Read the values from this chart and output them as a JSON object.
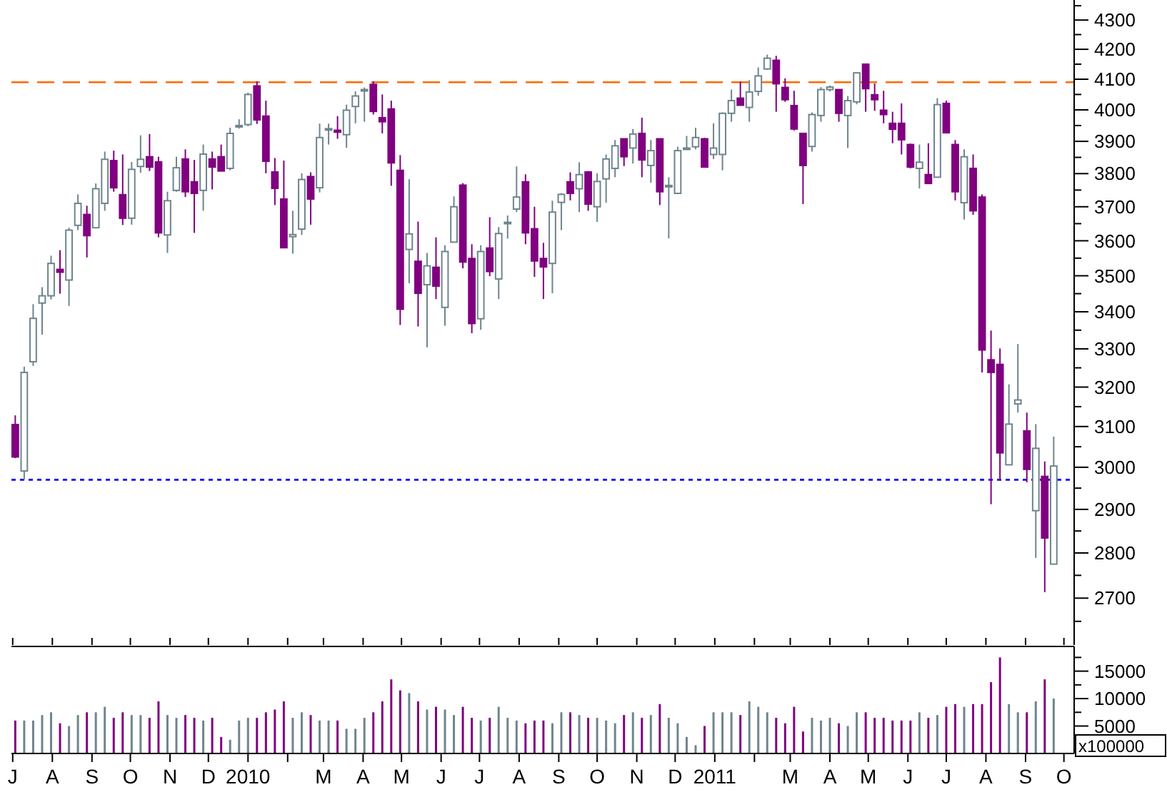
{
  "chart_data": [
    {
      "type": "candlestick",
      "log": true,
      "tick_labels": "y",
      "x": [
        "2009-07-03",
        "2009-07-10",
        "2009-07-17",
        "2009-07-24",
        "2009-07-31",
        "2009-08-07",
        "2009-08-14",
        "2009-08-21",
        "2009-08-28",
        "2009-09-04",
        "2009-09-11",
        "2009-09-18",
        "2009-09-25",
        "2009-10-02",
        "2009-10-09",
        "2009-10-16",
        "2009-10-23",
        "2009-10-30",
        "2009-11-06",
        "2009-11-13",
        "2009-11-20",
        "2009-11-27",
        "2009-12-04",
        "2009-12-11",
        "2009-12-18",
        "2009-12-25",
        "2010-01-01",
        "2010-01-08",
        "2010-01-15",
        "2010-01-22",
        "2010-01-29",
        "2010-02-05",
        "2010-02-12",
        "2010-02-19",
        "2010-02-26",
        "2010-03-05",
        "2010-03-12",
        "2010-03-19",
        "2010-03-26",
        "2010-04-02",
        "2010-04-09",
        "2010-04-16",
        "2010-04-23",
        "2010-04-30",
        "2010-05-07",
        "2010-05-14",
        "2010-05-21",
        "2010-05-28",
        "2010-06-04",
        "2010-06-11",
        "2010-06-18",
        "2010-06-25",
        "2010-07-02",
        "2010-07-09",
        "2010-07-16",
        "2010-07-23",
        "2010-07-30",
        "2010-08-06",
        "2010-08-13",
        "2010-08-20",
        "2010-08-27",
        "2010-09-03",
        "2010-09-10",
        "2010-09-17",
        "2010-09-24",
        "2010-10-01",
        "2010-10-08",
        "2010-10-15",
        "2010-10-22",
        "2010-10-29",
        "2010-11-05",
        "2010-11-12",
        "2010-11-19",
        "2010-11-26",
        "2010-12-03",
        "2010-12-10",
        "2010-12-17",
        "2010-12-24",
        "2010-12-31",
        "2011-01-07",
        "2011-01-14",
        "2011-01-21",
        "2011-01-28",
        "2011-02-04",
        "2011-02-11",
        "2011-02-18",
        "2011-02-25",
        "2011-03-04",
        "2011-03-11",
        "2011-03-18",
        "2011-03-25",
        "2011-04-01",
        "2011-04-08",
        "2011-04-15",
        "2011-04-22",
        "2011-04-29",
        "2011-05-06",
        "2011-05-13",
        "2011-05-20",
        "2011-05-27",
        "2011-06-03",
        "2011-06-10",
        "2011-06-17",
        "2011-06-24",
        "2011-07-01",
        "2011-07-08",
        "2011-07-15",
        "2011-07-22",
        "2011-07-29",
        "2011-08-05",
        "2011-08-12",
        "2011-08-19",
        "2011-08-26",
        "2011-09-02",
        "2011-09-09",
        "2011-09-16",
        "2011-09-23"
      ],
      "ohlc": [
        [
          3105,
          3128,
          3022,
          3025
        ],
        [
          2991,
          3253,
          2970,
          3238
        ],
        [
          3266,
          3421,
          3255,
          3382
        ],
        [
          3424,
          3468,
          3338,
          3444
        ],
        [
          3444,
          3557,
          3434,
          3535
        ],
        [
          3518,
          3573,
          3450,
          3510
        ],
        [
          3488,
          3638,
          3416,
          3631
        ],
        [
          3645,
          3737,
          3631,
          3710
        ],
        [
          3677,
          3703,
          3552,
          3615
        ],
        [
          3638,
          3770,
          3638,
          3754
        ],
        [
          3710,
          3868,
          3688,
          3844
        ],
        [
          3840,
          3871,
          3745,
          3757
        ],
        [
          3736,
          3859,
          3646,
          3666
        ],
        [
          3666,
          3836,
          3647,
          3813
        ],
        [
          3822,
          3919,
          3803,
          3844
        ],
        [
          3852,
          3923,
          3808,
          3820
        ],
        [
          3836,
          3852,
          3610,
          3623
        ],
        [
          3617,
          3745,
          3565,
          3718
        ],
        [
          3749,
          3852,
          3745,
          3818
        ],
        [
          3845,
          3875,
          3729,
          3745
        ],
        [
          3775,
          3842,
          3623,
          3740
        ],
        [
          3749,
          3890,
          3688,
          3860
        ],
        [
          3845,
          3868,
          3752,
          3820
        ],
        [
          3852,
          3890,
          3808,
          3808
        ],
        [
          3816,
          3943,
          3810,
          3925
        ],
        [
          3948,
          3970,
          3940,
          3950
        ],
        [
          3953,
          4056,
          3948,
          4050
        ],
        [
          4078,
          4093,
          3955,
          3968
        ],
        [
          3980,
          4030,
          3801,
          3838
        ],
        [
          3805,
          3848,
          3705,
          3755
        ],
        [
          3723,
          3840,
          3580,
          3580
        ],
        [
          3612,
          3688,
          3563,
          3618
        ],
        [
          3634,
          3801,
          3617,
          3782
        ],
        [
          3791,
          3804,
          3647,
          3723
        ],
        [
          3757,
          3956,
          3743,
          3912
        ],
        [
          3938,
          3956,
          3890,
          3940
        ],
        [
          3935,
          3980,
          3908,
          3929
        ],
        [
          3921,
          4017,
          3880,
          3999
        ],
        [
          4011,
          4060,
          3957,
          4045
        ],
        [
          4062,
          4073,
          3962,
          4066
        ],
        [
          4083,
          4093,
          3985,
          3995
        ],
        [
          3975,
          4050,
          3925,
          3962
        ],
        [
          4003,
          4030,
          3763,
          3833
        ],
        [
          3810,
          3857,
          3364,
          3407
        ],
        [
          3575,
          3783,
          3479,
          3620
        ],
        [
          3541,
          3656,
          3360,
          3451
        ],
        [
          3475,
          3565,
          3304,
          3528
        ],
        [
          3524,
          3610,
          3435,
          3471
        ],
        [
          3412,
          3587,
          3362,
          3569
        ],
        [
          3596,
          3731,
          3596,
          3700
        ],
        [
          3765,
          3771,
          3521,
          3539
        ],
        [
          3549,
          3590,
          3342,
          3368
        ],
        [
          3381,
          3587,
          3351,
          3569
        ],
        [
          3579,
          3669,
          3499,
          3512
        ],
        [
          3491,
          3640,
          3435,
          3621
        ],
        [
          3650,
          3674,
          3606,
          3654
        ],
        [
          3693,
          3822,
          3684,
          3729
        ],
        [
          3775,
          3798,
          3590,
          3623
        ],
        [
          3635,
          3700,
          3497,
          3542
        ],
        [
          3549,
          3594,
          3435,
          3525
        ],
        [
          3535,
          3718,
          3451,
          3684
        ],
        [
          3713,
          3741,
          3631,
          3737
        ],
        [
          3775,
          3804,
          3719,
          3740
        ],
        [
          3754,
          3835,
          3684,
          3797
        ],
        [
          3805,
          3808,
          3688,
          3708
        ],
        [
          3700,
          3801,
          3655,
          3776
        ],
        [
          3784,
          3859,
          3712,
          3845
        ],
        [
          3816,
          3904,
          3789,
          3886
        ],
        [
          3908,
          3908,
          3823,
          3852
        ],
        [
          3879,
          3939,
          3831,
          3923
        ],
        [
          3925,
          3975,
          3789,
          3842
        ],
        [
          3825,
          3904,
          3772,
          3871
        ],
        [
          3908,
          3908,
          3705,
          3745
        ],
        [
          3760,
          3789,
          3607,
          3764
        ],
        [
          3740,
          3883,
          3740,
          3871
        ],
        [
          3876,
          3917,
          3875,
          3879
        ],
        [
          3883,
          3943,
          3875,
          3912
        ],
        [
          3908,
          3911,
          3820,
          3820
        ],
        [
          3859,
          3957,
          3845,
          3879
        ],
        [
          3859,
          3992,
          3810,
          3989
        ],
        [
          3989,
          4066,
          3962,
          4030
        ],
        [
          4038,
          4092,
          4015,
          4015
        ],
        [
          4008,
          4097,
          3962,
          4058
        ],
        [
          4060,
          4139,
          4046,
          4111
        ],
        [
          4134,
          4182,
          4131,
          4170
        ],
        [
          4163,
          4178,
          3994,
          4085
        ],
        [
          4073,
          4103,
          4026,
          4033
        ],
        [
          4014,
          4062,
          3934,
          3939
        ],
        [
          3925,
          3925,
          3708,
          3825
        ],
        [
          3884,
          3992,
          3868,
          3985
        ],
        [
          3982,
          4074,
          3962,
          4066
        ],
        [
          4066,
          4079,
          4060,
          4074
        ],
        [
          4066,
          4066,
          3962,
          3989
        ],
        [
          3982,
          4045,
          3879,
          4030
        ],
        [
          4026,
          4121,
          4018,
          4121
        ],
        [
          4150,
          4150,
          3994,
          4069
        ],
        [
          4049,
          4086,
          3997,
          4033
        ],
        [
          3999,
          4062,
          3957,
          3985
        ],
        [
          3957,
          3994,
          3894,
          3938
        ],
        [
          3957,
          4021,
          3859,
          3905
        ],
        [
          3890,
          3893,
          3816,
          3820
        ],
        [
          3816,
          3890,
          3755,
          3835
        ],
        [
          3797,
          3894,
          3770,
          3770
        ],
        [
          3789,
          4038,
          3789,
          4017
        ],
        [
          4021,
          4030,
          3927,
          3927
        ],
        [
          3890,
          3904,
          3719,
          3745
        ],
        [
          3712,
          3875,
          3662,
          3852
        ],
        [
          3816,
          3859,
          3676,
          3688
        ],
        [
          3729,
          3737,
          3238,
          3297
        ],
        [
          3271,
          3349,
          2912,
          3238
        ],
        [
          3259,
          3301,
          2968,
          3035
        ],
        [
          3006,
          3207,
          3006,
          3106
        ],
        [
          3157,
          3313,
          3135,
          3167
        ],
        [
          3089,
          3135,
          2964,
          2995
        ],
        [
          2897,
          3106,
          2789,
          3046
        ],
        [
          2978,
          3014,
          2713,
          2834
        ],
        [
          2775,
          3075,
          2775,
          3003
        ]
      ],
      "colors": [
        "#800080",
        "#6e858e",
        "#6e858e",
        "#6e858e",
        "#6e858e",
        "#800080",
        "#6e858e",
        "#6e858e",
        "#800080",
        "#6e858e",
        "#6e858e",
        "#800080",
        "#800080",
        "#6e858e",
        "#6e858e",
        "#800080",
        "#800080",
        "#6e858e",
        "#6e858e",
        "#800080",
        "#800080",
        "#6e858e",
        "#800080",
        "#800080",
        "#6e858e",
        "#6e858e",
        "#6e858e",
        "#800080",
        "#800080",
        "#800080",
        "#800080",
        "#6e858e",
        "#6e858e",
        "#800080",
        "#6e858e",
        "#6e858e",
        "#800080",
        "#6e858e",
        "#6e858e",
        "#6e858e",
        "#800080",
        "#800080",
        "#800080",
        "#800080",
        "#6e858e",
        "#800080",
        "#6e858e",
        "#800080",
        "#6e858e",
        "#6e858e",
        "#800080",
        "#800080",
        "#6e858e",
        "#800080",
        "#6e858e",
        "#6e858e",
        "#6e858e",
        "#800080",
        "#800080",
        "#800080",
        "#6e858e",
        "#6e858e",
        "#800080",
        "#6e858e",
        "#800080",
        "#6e858e",
        "#6e858e",
        "#6e858e",
        "#800080",
        "#6e858e",
        "#800080",
        "#6e858e",
        "#800080",
        "#6e858e",
        "#6e858e",
        "#6e858e",
        "#6e858e",
        "#800080",
        "#6e858e",
        "#6e858e",
        "#6e858e",
        "#800080",
        "#6e858e",
        "#6e858e",
        "#6e858e",
        "#800080",
        "#800080",
        "#800080",
        "#800080",
        "#6e858e",
        "#6e858e",
        "#6e858e",
        "#800080",
        "#6e858e",
        "#6e858e",
        "#800080",
        "#800080",
        "#800080",
        "#800080",
        "#800080",
        "#800080",
        "#6e858e",
        "#800080",
        "#6e858e",
        "#800080",
        "#800080",
        "#6e858e",
        "#800080",
        "#800080",
        "#800080",
        "#800080",
        "#6e858e",
        "#6e858e",
        "#800080",
        "#6e858e",
        "#800080",
        "#6e858e"
      ],
      "xlim": [
        "2009-06-30",
        "2011-10-09"
      ],
      "xticks": [
        {
          "value": "2009-07-01",
          "label": null
        },
        {
          "value": "2009-08-01",
          "label": null
        },
        {
          "value": "2009-09-01",
          "label": null
        },
        {
          "value": "2009-10-01",
          "label": null
        },
        {
          "value": "2009-11-01",
          "label": null
        },
        {
          "value": "2009-12-01",
          "label": null
        },
        {
          "value": "2010-01-01",
          "label": null
        },
        {
          "value": "2010-02-01",
          "label": null
        },
        {
          "value": "2010-03-01",
          "label": null
        },
        {
          "value": "2010-04-01",
          "label": null
        },
        {
          "value": "2010-05-01",
          "label": null
        },
        {
          "value": "2010-06-01",
          "label": null
        },
        {
          "value": "2010-07-01",
          "label": null
        },
        {
          "value": "2010-08-01",
          "label": null
        },
        {
          "value": "2010-09-01",
          "label": null
        },
        {
          "value": "2010-10-01",
          "label": null
        },
        {
          "value": "2010-11-01",
          "label": null
        },
        {
          "value": "2010-12-01",
          "label": null
        },
        {
          "value": "2011-01-01",
          "label": null
        },
        {
          "value": "2011-02-01",
          "label": null
        },
        {
          "value": "2011-03-01",
          "label": null
        },
        {
          "value": "2011-04-01",
          "label": null
        },
        {
          "value": "2011-05-01",
          "label": null
        },
        {
          "value": "2011-06-01",
          "label": null
        },
        {
          "value": "2011-07-01",
          "label": null
        },
        {
          "value": "2011-08-01",
          "label": null
        },
        {
          "value": "2011-09-01",
          "label": null
        },
        {
          "value": "2011-10-01",
          "label": null
        }
      ],
      "ylim": [
        2600,
        4370
      ],
      "yticks": [
        {
          "value": 2650,
          "label": null
        },
        2700,
        {
          "value": 2750,
          "label": null
        },
        2800,
        {
          "value": 2850,
          "label": null
        },
        2900,
        {
          "value": 2950,
          "label": null
        },
        3000,
        {
          "value": 3050,
          "label": null
        },
        3100,
        {
          "value": 3150,
          "label": null
        },
        3200,
        {
          "value": 3250,
          "label": null
        },
        3300,
        {
          "value": 3350,
          "label": null
        },
        3400,
        {
          "value": 3450,
          "label": null
        },
        3500,
        {
          "value": 3550,
          "label": null
        },
        3600,
        {
          "value": 3650,
          "label": null
        },
        3700,
        {
          "value": 3750,
          "label": null
        },
        3800,
        {
          "value": 3850,
          "label": null
        },
        3900,
        {
          "value": 3950,
          "label": null
        },
        4000,
        {
          "value": 4050,
          "label": null
        },
        4100,
        {
          "value": 4150,
          "label": null
        },
        4200,
        {
          "value": 4250,
          "label": null
        },
        4300,
        {
          "value": 4350,
          "label": null
        }
      ],
      "ref_lines": [
        {
          "axis": "y",
          "value": 4090,
          "color": "#ff6a00",
          "line_style": "dashed"
        },
        {
          "axis": "y",
          "value": 2970,
          "color": "#0000ff",
          "line_style": "dotted"
        }
      ]
    },
    {
      "type": "bar",
      "x": [
        "2009-07-03",
        "2009-07-10",
        "2009-07-17",
        "2009-07-24",
        "2009-07-31",
        "2009-08-07",
        "2009-08-14",
        "2009-08-21",
        "2009-08-28",
        "2009-09-04",
        "2009-09-11",
        "2009-09-18",
        "2009-09-25",
        "2009-10-02",
        "2009-10-09",
        "2009-10-16",
        "2009-10-23",
        "2009-10-30",
        "2009-11-06",
        "2009-11-13",
        "2009-11-20",
        "2009-11-27",
        "2009-12-04",
        "2009-12-11",
        "2009-12-18",
        "2009-12-25",
        "2010-01-01",
        "2010-01-08",
        "2010-01-15",
        "2010-01-22",
        "2010-01-29",
        "2010-02-05",
        "2010-02-12",
        "2010-02-19",
        "2010-02-26",
        "2010-03-05",
        "2010-03-12",
        "2010-03-19",
        "2010-03-26",
        "2010-04-02",
        "2010-04-09",
        "2010-04-16",
        "2010-04-23",
        "2010-04-30",
        "2010-05-07",
        "2010-05-14",
        "2010-05-21",
        "2010-05-28",
        "2010-06-04",
        "2010-06-11",
        "2010-06-18",
        "2010-06-25",
        "2010-07-02",
        "2010-07-09",
        "2010-07-16",
        "2010-07-23",
        "2010-07-30",
        "2010-08-06",
        "2010-08-13",
        "2010-08-20",
        "2010-08-27",
        "2010-09-03",
        "2010-09-10",
        "2010-09-17",
        "2010-09-24",
        "2010-10-01",
        "2010-10-08",
        "2010-10-15",
        "2010-10-22",
        "2010-10-29",
        "2010-11-05",
        "2010-11-12",
        "2010-11-19",
        "2010-11-26",
        "2010-12-03",
        "2010-12-10",
        "2010-12-17",
        "2010-12-24",
        "2010-12-31",
        "2011-01-07",
        "2011-01-14",
        "2011-01-21",
        "2011-01-28",
        "2011-02-04",
        "2011-02-11",
        "2011-02-18",
        "2011-02-25",
        "2011-03-04",
        "2011-03-11",
        "2011-03-18",
        "2011-03-25",
        "2011-04-01",
        "2011-04-08",
        "2011-04-15",
        "2011-04-22",
        "2011-04-29",
        "2011-05-06",
        "2011-05-13",
        "2011-05-20",
        "2011-05-27",
        "2011-06-03",
        "2011-06-10",
        "2011-06-17",
        "2011-06-24",
        "2011-07-01",
        "2011-07-08",
        "2011-07-15",
        "2011-07-22",
        "2011-07-29",
        "2011-08-05",
        "2011-08-12",
        "2011-08-19",
        "2011-08-26",
        "2011-09-02",
        "2011-09-09",
        "2011-09-16",
        "2011-09-23"
      ],
      "values": [
        6000,
        6000,
        6000,
        7000,
        7500,
        5500,
        5000,
        7000,
        7500,
        7500,
        8500,
        6500,
        7500,
        7000,
        7000,
        6500,
        9500,
        7000,
        6500,
        7000,
        6500,
        6000,
        6500,
        3000,
        2500,
        6000,
        6500,
        6500,
        7500,
        8000,
        9500,
        6500,
        7500,
        7000,
        6000,
        6000,
        6000,
        4500,
        4500,
        6500,
        7500,
        9500,
        13500,
        11500,
        11000,
        9500,
        8000,
        8500,
        8000,
        7000,
        8500,
        6500,
        6000,
        6500,
        8500,
        6500,
        6000,
        5500,
        6000,
        6000,
        5500,
        7500,
        7500,
        7000,
        6500,
        6500,
        6000,
        5500,
        7000,
        7500,
        6500,
        7000,
        9000,
        6500,
        5500,
        3000,
        1500,
        5000,
        7500,
        7500,
        7500,
        7000,
        9500,
        8500,
        7500,
        6500,
        5500,
        8500,
        4000,
        6500,
        6000,
        6500,
        5500,
        5000,
        7500,
        7500,
        6500,
        6500,
        6000,
        6000,
        6000,
        7500,
        6500,
        7000,
        8500,
        9000,
        8500,
        9000,
        9000,
        13000,
        17500,
        9000,
        7500,
        7500,
        9500,
        13500,
        10000
      ],
      "colors": [
        "#800080",
        "#6e858e",
        "#6e858e",
        "#6e858e",
        "#6e858e",
        "#800080",
        "#6e858e",
        "#6e858e",
        "#800080",
        "#6e858e",
        "#6e858e",
        "#800080",
        "#800080",
        "#6e858e",
        "#6e858e",
        "#800080",
        "#800080",
        "#6e858e",
        "#6e858e",
        "#800080",
        "#800080",
        "#6e858e",
        "#800080",
        "#800080",
        "#6e858e",
        "#6e858e",
        "#6e858e",
        "#800080",
        "#800080",
        "#800080",
        "#800080",
        "#6e858e",
        "#6e858e",
        "#800080",
        "#6e858e",
        "#6e858e",
        "#800080",
        "#6e858e",
        "#6e858e",
        "#6e858e",
        "#800080",
        "#800080",
        "#800080",
        "#800080",
        "#6e858e",
        "#800080",
        "#6e858e",
        "#800080",
        "#6e858e",
        "#6e858e",
        "#800080",
        "#800080",
        "#6e858e",
        "#800080",
        "#6e858e",
        "#6e858e",
        "#6e858e",
        "#800080",
        "#800080",
        "#800080",
        "#6e858e",
        "#6e858e",
        "#800080",
        "#6e858e",
        "#800080",
        "#6e858e",
        "#6e858e",
        "#6e858e",
        "#800080",
        "#6e858e",
        "#800080",
        "#6e858e",
        "#800080",
        "#6e858e",
        "#6e858e",
        "#6e858e",
        "#6e858e",
        "#800080",
        "#6e858e",
        "#6e858e",
        "#6e858e",
        "#800080",
        "#6e858e",
        "#6e858e",
        "#6e858e",
        "#800080",
        "#800080",
        "#800080",
        "#800080",
        "#6e858e",
        "#6e858e",
        "#6e858e",
        "#800080",
        "#6e858e",
        "#6e858e",
        "#800080",
        "#800080",
        "#800080",
        "#800080",
        "#800080",
        "#800080",
        "#6e858e",
        "#800080",
        "#6e858e",
        "#800080",
        "#800080",
        "#6e858e",
        "#800080",
        "#800080",
        "#800080",
        "#800080",
        "#6e858e",
        "#6e858e",
        "#800080",
        "#6e858e",
        "#800080",
        "#6e858e"
      ],
      "xlim": [
        "2009-06-30",
        "2011-10-09"
      ],
      "xticks": [
        {
          "value": "2009-07-01",
          "label": "J"
        },
        {
          "value": "2009-08-01",
          "label": "A"
        },
        {
          "value": "2009-09-01",
          "label": "S"
        },
        {
          "value": "2009-10-01",
          "label": "O"
        },
        {
          "value": "2009-11-01",
          "label": "N"
        },
        {
          "value": "2009-12-01",
          "label": "D"
        },
        {
          "value": "2010-01-01",
          "label": "2010"
        },
        {
          "value": "2010-02-01",
          "label": null
        },
        {
          "value": "2010-03-01",
          "label": "M"
        },
        {
          "value": "2010-04-01",
          "label": "A"
        },
        {
          "value": "2010-05-01",
          "label": "M"
        },
        {
          "value": "2010-06-01",
          "label": "J"
        },
        {
          "value": "2010-07-01",
          "label": "J"
        },
        {
          "value": "2010-08-01",
          "label": "A"
        },
        {
          "value": "2010-09-01",
          "label": "S"
        },
        {
          "value": "2010-10-01",
          "label": "O"
        },
        {
          "value": "2010-11-01",
          "label": "N"
        },
        {
          "value": "2010-12-01",
          "label": "D"
        },
        {
          "value": "2011-01-01",
          "label": "2011"
        },
        {
          "value": "2011-02-01",
          "label": null
        },
        {
          "value": "2011-03-01",
          "label": "M"
        },
        {
          "value": "2011-04-01",
          "label": "A"
        },
        {
          "value": "2011-05-01",
          "label": "M"
        },
        {
          "value": "2011-06-01",
          "label": "J"
        },
        {
          "value": "2011-07-01",
          "label": "J"
        },
        {
          "value": "2011-08-01",
          "label": "A"
        },
        {
          "value": "2011-09-01",
          "label": "S"
        },
        {
          "value": "2011-10-01",
          "label": "O"
        }
      ],
      "ylim": [
        0,
        19500
      ],
      "yticks": [
        {
          "value": 2500,
          "label": null
        },
        5000,
        {
          "value": 7500,
          "label": null
        },
        10000,
        {
          "value": 12500,
          "label": null
        },
        15000,
        {
          "value": 17500,
          "label": null
        }
      ],
      "annotations": [
        "x100000"
      ]
    }
  ]
}
